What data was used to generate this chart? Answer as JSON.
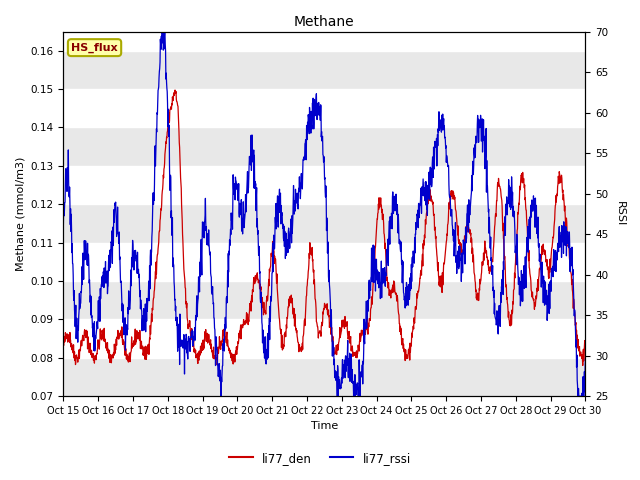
{
  "title": "Methane",
  "xlabel": "Time",
  "ylabel_left": "Methane (mmol/m3)",
  "ylabel_right": "RSSI",
  "ylim_left": [
    0.07,
    0.165
  ],
  "ylim_right": [
    25,
    70
  ],
  "yticks_left": [
    0.07,
    0.08,
    0.09,
    0.1,
    0.11,
    0.12,
    0.13,
    0.14,
    0.15,
    0.16
  ],
  "yticks_right": [
    25,
    30,
    35,
    40,
    45,
    50,
    55,
    60,
    65,
    70
  ],
  "xtick_labels": [
    "Oct 15",
    "Oct 16",
    "Oct 17",
    "Oct 18",
    "Oct 19",
    "Oct 20",
    "Oct 21",
    "Oct 22",
    "Oct 23",
    "Oct 24",
    "Oct 25",
    "Oct 26",
    "Oct 27",
    "Oct 28",
    "Oct 29",
    "Oct 30"
  ],
  "color_den": "#cc0000",
  "color_rssi": "#0000cc",
  "legend_label_den": "li77_den",
  "legend_label_rssi": "li77_rssi",
  "annotation_text": "HS_flux",
  "annotation_color": "#880000",
  "annotation_bg": "#ffffaa",
  "annotation_border": "#aaaa00",
  "background_color": "#e8e8e8",
  "n_points": 1600
}
